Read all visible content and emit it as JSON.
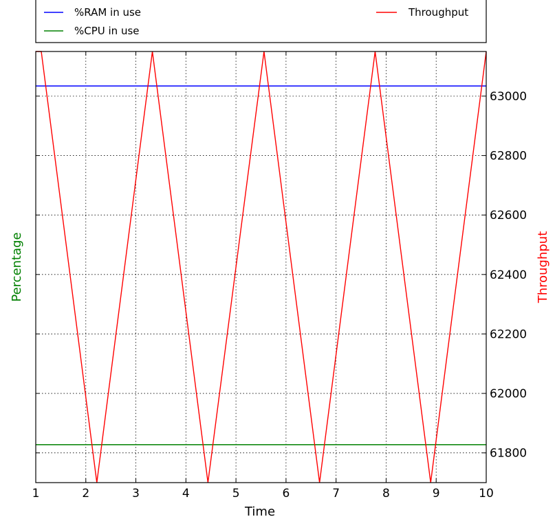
{
  "chart_data": {
    "type": "line",
    "xlabel": "Time",
    "ylabel_left": "Percentage",
    "ylabel_right": "Throughput",
    "xlim": [
      1,
      10
    ],
    "ylim_right": [
      61700,
      63150
    ],
    "x_ticks": [
      "1",
      "2",
      "3",
      "4",
      "5",
      "6",
      "7",
      "8",
      "9",
      "10"
    ],
    "y_right_ticks": [
      "61800",
      "62000",
      "62200",
      "62400",
      "62600",
      "62800",
      "63000"
    ],
    "grid": true,
    "legend_position": "top",
    "series": [
      {
        "name": "%RAM in use",
        "color": "#0000ff",
        "axis": "left",
        "x": [
          1,
          10
        ],
        "y": [
          0.92,
          0.92
        ]
      },
      {
        "name": "%CPU in use",
        "color": "#008000",
        "axis": "left",
        "x": [
          1,
          10
        ],
        "y": [
          0.088,
          0.088
        ]
      },
      {
        "name": "Throughput",
        "color": "#ff0000",
        "axis": "right",
        "x": [
          1.11,
          2.22,
          3.33,
          4.44,
          5.56,
          6.67,
          7.78,
          8.89,
          10.0
        ],
        "y": [
          63150,
          61700,
          63150,
          61700,
          63150,
          61700,
          63150,
          61700,
          63150
        ]
      }
    ]
  }
}
